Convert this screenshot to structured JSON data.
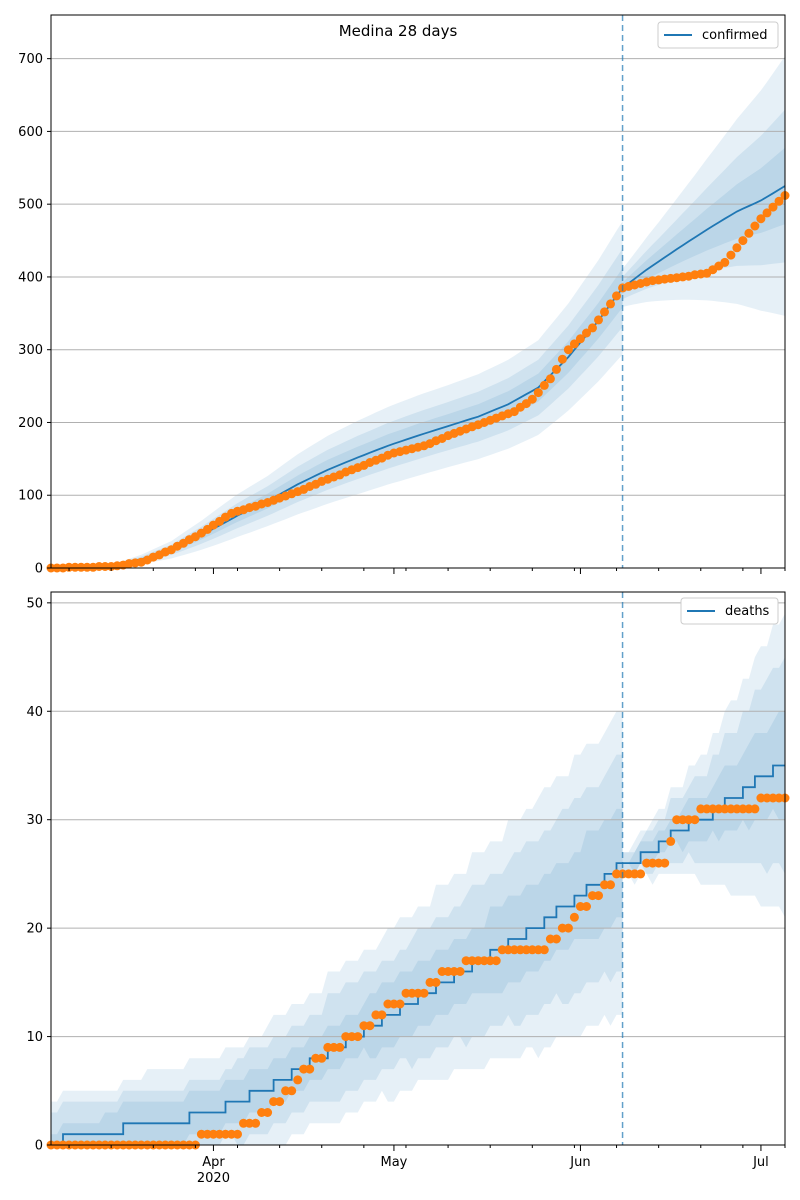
{
  "figure": {
    "title": "Medina 28 days"
  },
  "colors": {
    "model": "#1f77b4",
    "observed": "#ff7f0e",
    "band": "#1f77b4",
    "grid": "#b0b0b0",
    "forecast_line": "#1f77b4"
  },
  "chart_data": [
    {
      "type": "line",
      "name": "confirmed-panel",
      "legend": "confirmed",
      "legend_position": "top-right",
      "grid": "horizontal",
      "x_type": "date",
      "xlim": [
        "2020-03-05",
        "2020-07-05"
      ],
      "ylim": [
        0,
        760
      ],
      "yticks": [
        0,
        100,
        200,
        300,
        400,
        500,
        600,
        700
      ],
      "forecast_start": "2020-06-08",
      "model_anchors": [
        [
          "2020-03-05",
          0
        ],
        [
          "2020-03-10",
          1
        ],
        [
          "2020-03-15",
          4
        ],
        [
          "2020-03-20",
          12
        ],
        [
          "2020-03-25",
          25
        ],
        [
          "2020-03-30",
          45
        ],
        [
          "2020-04-05",
          72
        ],
        [
          "2020-04-10",
          92
        ],
        [
          "2020-04-15",
          115
        ],
        [
          "2020-04-20",
          135
        ],
        [
          "2020-04-25",
          152
        ],
        [
          "2020-04-30",
          168
        ],
        [
          "2020-05-05",
          182
        ],
        [
          "2020-05-10",
          195
        ],
        [
          "2020-05-15",
          208
        ],
        [
          "2020-05-20",
          225
        ],
        [
          "2020-05-25",
          248
        ],
        [
          "2020-05-30",
          290
        ],
        [
          "2020-06-04",
          340
        ],
        [
          "2020-06-08",
          385
        ],
        [
          "2020-06-12",
          410
        ],
        [
          "2020-06-17",
          438
        ],
        [
          "2020-06-22",
          465
        ],
        [
          "2020-06-27",
          490
        ],
        [
          "2020-07-01",
          505
        ],
        [
          "2020-07-05",
          525
        ]
      ],
      "band_spreads_hist": [
        [
          "2020-03-05",
          0.0
        ],
        [
          "2020-03-20",
          0.3
        ],
        [
          "2020-04-10",
          0.22
        ],
        [
          "2020-05-10",
          0.17
        ],
        [
          "2020-06-08",
          0.14
        ]
      ],
      "band_spreads_fc": [
        [
          "2020-06-08",
          0.04
        ],
        [
          "2020-07-05",
          0.2
        ]
      ],
      "band_factors": [
        0.5,
        1.0,
        1.7
      ],
      "observed_anchors": [
        [
          "2020-03-05",
          0
        ],
        [
          "2020-03-15",
          2
        ],
        [
          "2020-03-20",
          8
        ],
        [
          "2020-03-25",
          25
        ],
        [
          "2020-03-30",
          48
        ],
        [
          "2020-04-04",
          75
        ],
        [
          "2020-04-10",
          90
        ],
        [
          "2020-04-15",
          105
        ],
        [
          "2020-04-20",
          122
        ],
        [
          "2020-04-25",
          138
        ],
        [
          "2020-05-01",
          158
        ],
        [
          "2020-05-06",
          168
        ],
        [
          "2020-05-11",
          185
        ],
        [
          "2020-05-16",
          200
        ],
        [
          "2020-05-21",
          215
        ],
        [
          "2020-05-24",
          232
        ],
        [
          "2020-05-27",
          260
        ],
        [
          "2020-05-30",
          300
        ],
        [
          "2020-06-03",
          330
        ],
        [
          "2020-06-08",
          385
        ],
        [
          "2020-06-13",
          395
        ],
        [
          "2020-06-18",
          400
        ],
        [
          "2020-06-22",
          405
        ],
        [
          "2020-06-25",
          420
        ],
        [
          "2020-06-28",
          450
        ],
        [
          "2020-07-01",
          480
        ],
        [
          "2020-07-05",
          512
        ]
      ]
    },
    {
      "type": "line",
      "name": "deaths-panel",
      "legend": "deaths",
      "legend_position": "top-right",
      "grid": "horizontal",
      "x_type": "date",
      "xlim": [
        "2020-03-05",
        "2020-07-05"
      ],
      "ylim": [
        0,
        51
      ],
      "yticks": [
        0,
        10,
        20,
        30,
        40,
        50
      ],
      "forecast_start": "2020-06-08",
      "xticks": [
        {
          "date": "2020-04-01",
          "label": "Apr",
          "sub": "2020"
        },
        {
          "date": "2020-05-01",
          "label": "May",
          "sub": ""
        },
        {
          "date": "2020-06-01",
          "label": "Jun",
          "sub": ""
        },
        {
          "date": "2020-07-01",
          "label": "Jul",
          "sub": ""
        }
      ],
      "model_anchors": [
        [
          "2020-03-05",
          0
        ],
        [
          "2020-03-09",
          1
        ],
        [
          "2020-03-25",
          2
        ],
        [
          "2020-03-31",
          3
        ],
        [
          "2020-04-05",
          4
        ],
        [
          "2020-04-12",
          6
        ],
        [
          "2020-04-18",
          8
        ],
        [
          "2020-04-24",
          10
        ],
        [
          "2020-04-30",
          12
        ],
        [
          "2020-05-06",
          14
        ],
        [
          "2020-05-12",
          16
        ],
        [
          "2020-05-18",
          18
        ],
        [
          "2020-05-24",
          20
        ],
        [
          "2020-05-29",
          22
        ],
        [
          "2020-06-03",
          24
        ],
        [
          "2020-06-08",
          26
        ],
        [
          "2020-06-13",
          27
        ],
        [
          "2020-06-17",
          29
        ],
        [
          "2020-06-21",
          30
        ],
        [
          "2020-06-26",
          32
        ],
        [
          "2020-07-01",
          34
        ],
        [
          "2020-07-05",
          35
        ]
      ],
      "band_abs_hist": [
        [
          "2020-03-05",
          4
        ],
        [
          "2020-04-05",
          5
        ],
        [
          "2020-05-05",
          8
        ],
        [
          "2020-06-08",
          14
        ]
      ],
      "band_abs_fc": [
        [
          "2020-06-08",
          1
        ],
        [
          "2020-06-20",
          5
        ],
        [
          "2020-07-05",
          14
        ]
      ],
      "band_factors": [
        0.35,
        0.7,
        1.0
      ],
      "observed_anchors": [
        [
          "2020-03-05",
          0
        ],
        [
          "2020-03-29",
          0
        ],
        [
          "2020-03-30",
          1
        ],
        [
          "2020-04-04",
          1
        ],
        [
          "2020-04-10",
          3
        ],
        [
          "2020-04-15",
          6
        ],
        [
          "2020-04-20",
          9
        ],
        [
          "2020-04-25",
          10
        ],
        [
          "2020-04-30",
          13
        ],
        [
          "2020-05-05",
          14
        ],
        [
          "2020-05-10",
          16
        ],
        [
          "2020-05-15",
          17
        ],
        [
          "2020-05-18",
          17
        ],
        [
          "2020-05-20",
          18
        ],
        [
          "2020-05-26",
          18
        ],
        [
          "2020-05-28",
          19
        ],
        [
          "2020-05-31",
          21
        ],
        [
          "2020-06-03",
          23
        ],
        [
          "2020-06-06",
          24
        ],
        [
          "2020-06-08",
          25
        ],
        [
          "2020-06-11",
          25
        ],
        [
          "2020-06-13",
          26
        ],
        [
          "2020-06-15",
          26
        ],
        [
          "2020-06-17",
          30
        ],
        [
          "2020-06-20",
          30
        ],
        [
          "2020-06-22",
          31
        ],
        [
          "2020-06-30",
          31
        ],
        [
          "2020-07-01",
          32
        ],
        [
          "2020-07-05",
          32
        ]
      ]
    }
  ]
}
